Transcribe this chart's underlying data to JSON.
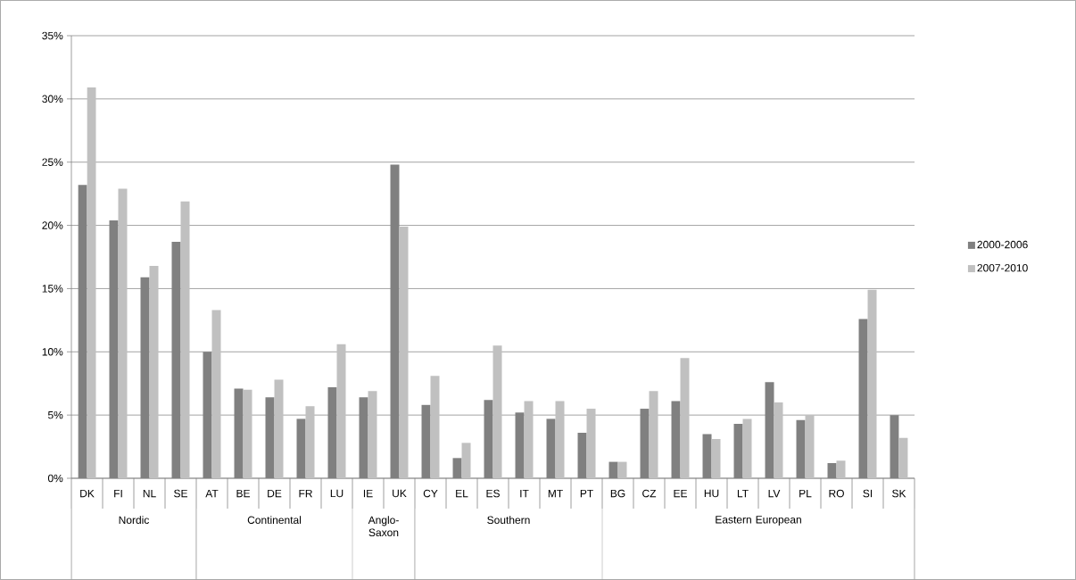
{
  "chart_data": {
    "type": "bar",
    "categories": [
      "DK",
      "FI",
      "NL",
      "SE",
      "AT",
      "BE",
      "DE",
      "FR",
      "LU",
      "IE",
      "UK",
      "CY",
      "EL",
      "ES",
      "IT",
      "MT",
      "PT",
      "BG",
      "CZ",
      "EE",
      "HU",
      "LT",
      "LV",
      "PL",
      "RO",
      "SI",
      "SK"
    ],
    "series": [
      {
        "name": "2000-2006",
        "color": "#808080",
        "values": [
          23.2,
          20.4,
          15.9,
          18.7,
          10.0,
          7.1,
          6.4,
          4.7,
          7.2,
          6.4,
          24.8,
          5.8,
          1.6,
          6.2,
          5.2,
          4.7,
          3.6,
          1.3,
          5.5,
          6.1,
          3.5,
          4.3,
          7.6,
          4.6,
          1.2,
          12.6,
          5.0
        ]
      },
      {
        "name": "2007-2010",
        "color": "#c0c0c0",
        "values": [
          30.9,
          22.9,
          16.8,
          21.9,
          13.3,
          7.0,
          7.8,
          5.7,
          10.6,
          6.9,
          19.9,
          8.1,
          2.8,
          10.5,
          6.1,
          6.1,
          5.5,
          1.3,
          6.9,
          9.5,
          3.1,
          4.7,
          6.0,
          5.0,
          1.4,
          14.9,
          3.2
        ]
      }
    ],
    "ylim": [
      0,
      35
    ],
    "yticks": [
      {
        "value": 0,
        "label": "0%"
      },
      {
        "value": 5,
        "label": "5%"
      },
      {
        "value": 10,
        "label": "10%"
      },
      {
        "value": 15,
        "label": "15%"
      },
      {
        "value": 20,
        "label": "20%"
      },
      {
        "value": 25,
        "label": "25%"
      },
      {
        "value": 30,
        "label": "30%"
      },
      {
        "value": 35,
        "label": "35%"
      }
    ],
    "grid": "y",
    "legend": "right",
    "annotations": [
      "Nordic",
      "Continental",
      "Anglo-Saxon",
      "Southern",
      "Eastern European"
    ]
  }
}
